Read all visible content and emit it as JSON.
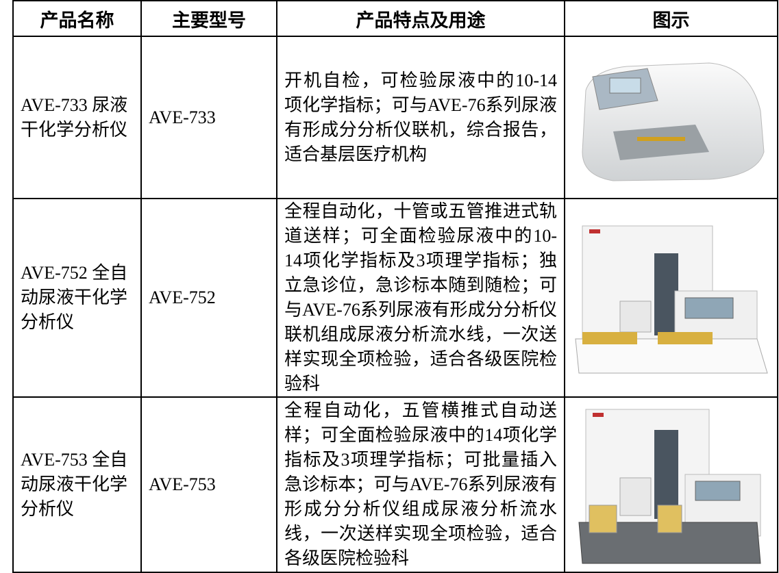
{
  "table": {
    "header": [
      "产品名称",
      "主要型号",
      "产品特点及用途",
      "图示"
    ],
    "rows": [
      [
        "AVE-733 尿液干化学分析仪",
        "AVE-733",
        "开机自检，可检验尿液中的10-14项化学指标；可与AVE-76系列尿液有形成分分析仪联机，综合报告，适合基层医疗机构"
      ],
      [
        "AVE-752 全自动尿液干化学分析仪",
        "AVE-752",
        "全程自动化，十管或五管推进式轨道送样；可全面检验尿液中的10-14项化学指标及3项理学指标；独立急诊位，急诊标本随到随检；可与AVE-76系列尿液有形成分分析仪联机组成尿液分析流水线，一次送样实现全项检验，适合各级医院检验科"
      ],
      [
        "AVE-753 全自动尿液干化学分析仪",
        "AVE-753",
        "全程自动化，五管横推式自动送样；可全面检验尿液中的14项化学指标及3项理学指标；可批量插入急诊标本；可与AVE-76系列尿液有形成分分析仪组成尿液分析流水线，一次送样实现全项检验，适合各级医院检验科"
      ]
    ]
  }
}
